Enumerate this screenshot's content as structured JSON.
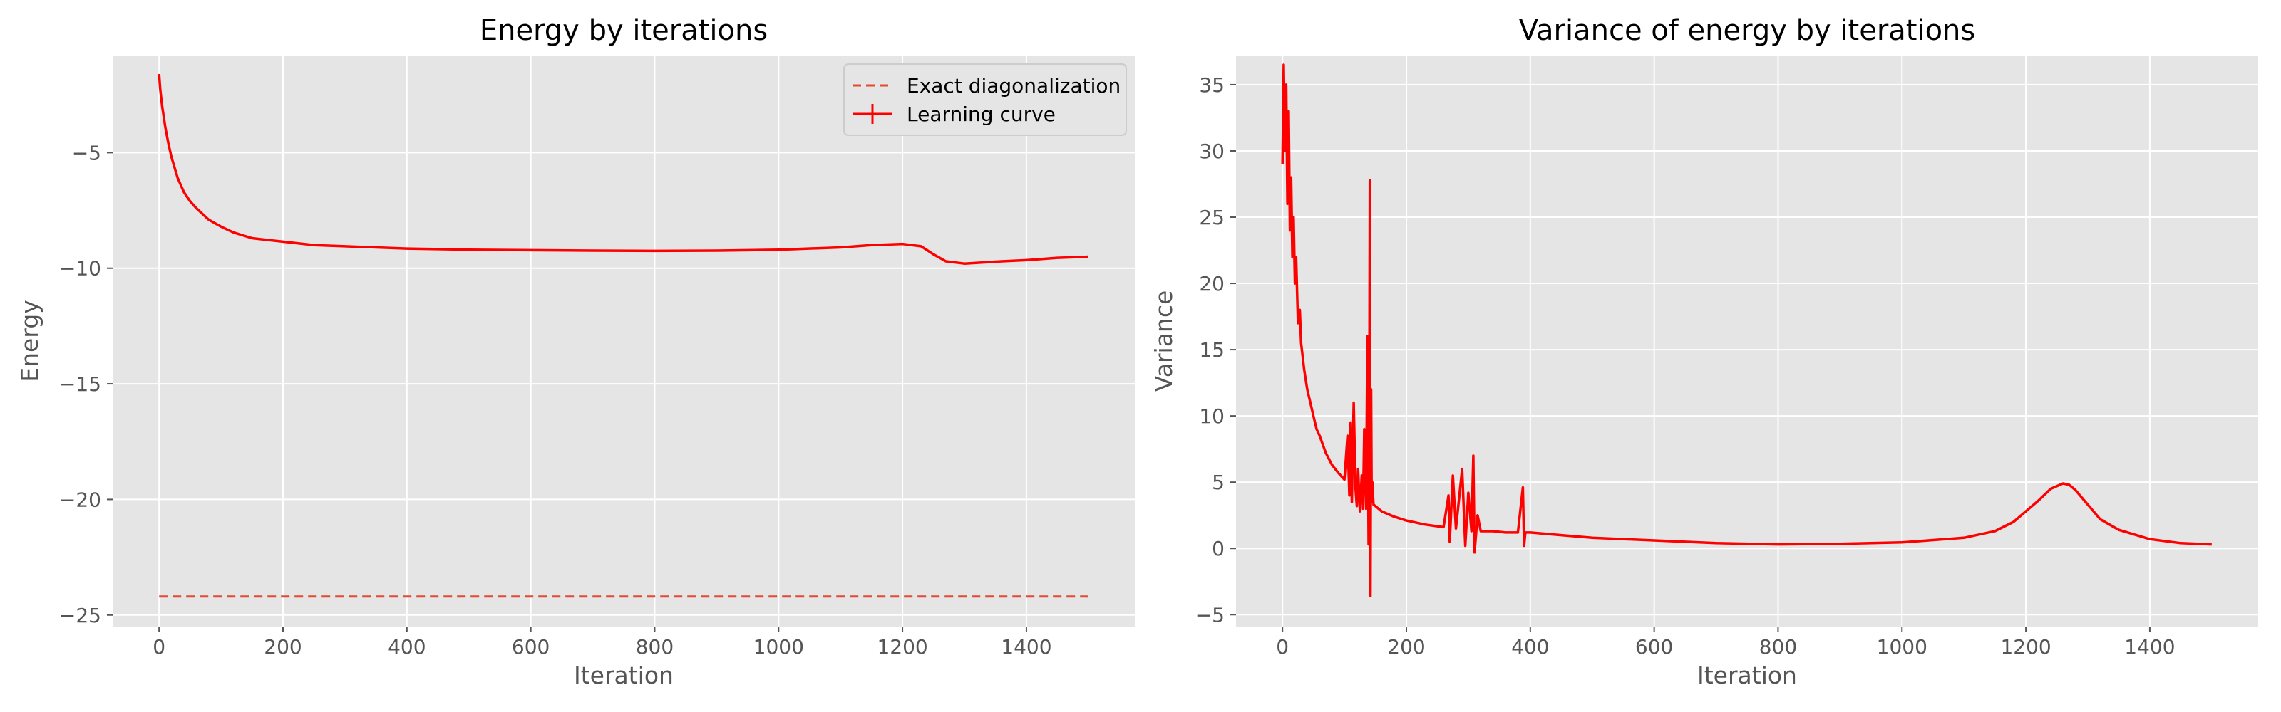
{
  "chart_data": [
    {
      "type": "line",
      "title": "Energy by iterations",
      "xlabel": "Iteration",
      "ylabel": "Energy",
      "xlim": [
        -75,
        1575
      ],
      "ylim": [
        -25.5,
        -0.8
      ],
      "xticks": [
        0,
        200,
        400,
        600,
        800,
        1000,
        1200,
        1400
      ],
      "xtick_labels": [
        "0",
        "200",
        "400",
        "600",
        "800",
        "1000",
        "1200",
        "1400"
      ],
      "yticks": [
        -25,
        -20,
        -15,
        -10,
        -5
      ],
      "ytick_labels": [
        "−25",
        "−20",
        "−15",
        "−10",
        "−5"
      ],
      "grid": true,
      "legend_position": "top-right",
      "series": [
        {
          "name": "Exact diagonalization",
          "style": "dashed",
          "color": "#e24a33",
          "x": [
            0,
            1500
          ],
          "y": [
            -24.2,
            -24.2
          ]
        },
        {
          "name": "Learning curve",
          "style": "solid",
          "color": "#ff0000",
          "x": [
            0,
            2,
            5,
            10,
            15,
            20,
            30,
            40,
            50,
            60,
            80,
            100,
            120,
            150,
            200,
            250,
            300,
            400,
            500,
            600,
            700,
            800,
            900,
            1000,
            1100,
            1150,
            1200,
            1230,
            1250,
            1270,
            1300,
            1330,
            1360,
            1400,
            1450,
            1500
          ],
          "y": [
            -1.6,
            -2.3,
            -3.0,
            -3.9,
            -4.6,
            -5.2,
            -6.1,
            -6.7,
            -7.1,
            -7.4,
            -7.9,
            -8.2,
            -8.45,
            -8.7,
            -8.85,
            -9.0,
            -9.05,
            -9.15,
            -9.2,
            -9.22,
            -9.24,
            -9.25,
            -9.24,
            -9.2,
            -9.1,
            -9.0,
            -8.95,
            -9.05,
            -9.4,
            -9.7,
            -9.8,
            -9.75,
            -9.7,
            -9.65,
            -9.55,
            -9.5
          ]
        }
      ]
    },
    {
      "type": "line",
      "title": "Variance of energy by iterations",
      "xlabel": "Iteration",
      "ylabel": "Variance",
      "xlim": [
        -75,
        1575
      ],
      "ylim": [
        -5.9,
        37.2
      ],
      "xticks": [
        0,
        200,
        400,
        600,
        800,
        1000,
        1200,
        1400
      ],
      "xtick_labels": [
        "0",
        "200",
        "400",
        "600",
        "800",
        "1000",
        "1200",
        "1400"
      ],
      "yticks": [
        -5,
        0,
        5,
        10,
        15,
        20,
        25,
        30,
        35
      ],
      "ytick_labels": [
        "−5",
        "0",
        "5",
        "10",
        "15",
        "20",
        "25",
        "30",
        "35"
      ],
      "grid": true,
      "series": [
        {
          "style": "solid",
          "color": "#ff0000",
          "x": [
            0,
            2,
            4,
            6,
            8,
            10,
            12,
            14,
            16,
            18,
            20,
            22,
            25,
            28,
            30,
            35,
            40,
            45,
            50,
            55,
            60,
            70,
            80,
            90,
            100,
            105,
            108,
            110,
            112,
            115,
            118,
            120,
            122,
            125,
            128,
            130,
            132,
            135,
            137,
            139,
            140,
            141,
            142,
            143,
            144,
            145,
            147,
            150,
            160,
            180,
            200,
            230,
            260,
            268,
            270,
            275,
            280,
            290,
            295,
            300,
            305,
            308,
            310,
            315,
            320,
            340,
            360,
            380,
            388,
            390,
            392,
            400,
            450,
            500,
            600,
            700,
            800,
            900,
            1000,
            1100,
            1150,
            1180,
            1200,
            1220,
            1240,
            1260,
            1270,
            1280,
            1300,
            1320,
            1350,
            1400,
            1450,
            1500
          ],
          "y": [
            29,
            36.5,
            30,
            35,
            26,
            33,
            24,
            28,
            22,
            25,
            20,
            22,
            17,
            18,
            15.5,
            13.5,
            12,
            11,
            10,
            9,
            8.5,
            7.2,
            6.3,
            5.7,
            5.2,
            8.5,
            4.0,
            9.5,
            3.5,
            11.0,
            4.5,
            3.2,
            6.0,
            2.8,
            5.5,
            3.0,
            9.0,
            3.0,
            16.0,
            0.3,
            8.0,
            27.8,
            -3.6,
            12.0,
            3.5,
            5.0,
            3.3,
            3.2,
            2.8,
            2.4,
            2.1,
            1.8,
            1.6,
            4.0,
            0.5,
            5.5,
            1.5,
            6.0,
            0.2,
            4.2,
            1.3,
            7.0,
            -0.3,
            2.5,
            1.3,
            1.3,
            1.2,
            1.2,
            4.6,
            0.2,
            1.2,
            1.2,
            1.0,
            0.8,
            0.6,
            0.4,
            0.3,
            0.35,
            0.45,
            0.8,
            1.3,
            2.0,
            2.8,
            3.6,
            4.5,
            4.9,
            4.8,
            4.4,
            3.3,
            2.2,
            1.4,
            0.7,
            0.4,
            0.3
          ]
        }
      ]
    }
  ]
}
